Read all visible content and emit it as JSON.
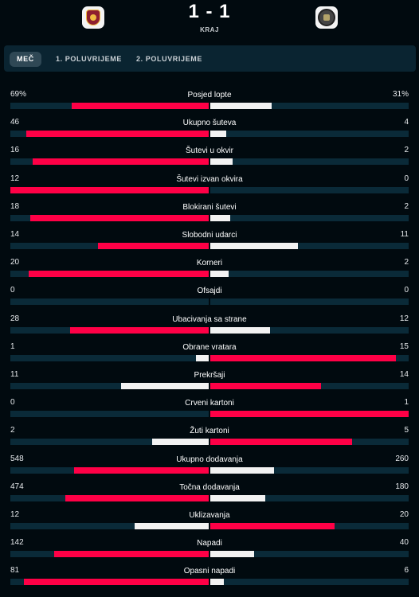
{
  "match": {
    "score": "1 - 1",
    "status": "KRAJ",
    "home_logo": "as-roma-crest",
    "away_logo": "away-team-crest"
  },
  "tabs": [
    "MEČ",
    "1. POLUVRIJEME",
    "2. POLUVRIJEME"
  ],
  "colors": {
    "home": "#ff0046",
    "away": "#f2f2f2",
    "track": "#0a2a38",
    "background": "#010a0f"
  },
  "stats": [
    {
      "label": "Posjed lopte",
      "home": "69%",
      "away": "31%",
      "h": 69,
      "a": 31
    },
    {
      "label": "Ukupno šuteva",
      "home": "46",
      "away": "4",
      "h": 46,
      "a": 4
    },
    {
      "label": "Šutevi u okvir",
      "home": "16",
      "away": "2",
      "h": 16,
      "a": 2
    },
    {
      "label": "Šutevi izvan okvira",
      "home": "12",
      "away": "0",
      "h": 12,
      "a": 0
    },
    {
      "label": "Blokirani šutevi",
      "home": "18",
      "away": "2",
      "h": 18,
      "a": 2
    },
    {
      "label": "Slobodni udarci",
      "home": "14",
      "away": "11",
      "h": 14,
      "a": 11
    },
    {
      "label": "Korneri",
      "home": "20",
      "away": "2",
      "h": 20,
      "a": 2
    },
    {
      "label": "Ofsajdi",
      "home": "0",
      "away": "0",
      "h": 0,
      "a": 0
    },
    {
      "label": "Ubacivanja sa strane",
      "home": "28",
      "away": "12",
      "h": 28,
      "a": 12
    },
    {
      "label": "Obrane vratara",
      "home": "1",
      "away": "15",
      "h": 1,
      "a": 15
    },
    {
      "label": "Prekršaji",
      "home": "11",
      "away": "14",
      "h": 11,
      "a": 14
    },
    {
      "label": "Crveni kartoni",
      "home": "0",
      "away": "1",
      "h": 0,
      "a": 1
    },
    {
      "label": "Žuti kartoni",
      "home": "2",
      "away": "5",
      "h": 2,
      "a": 5
    },
    {
      "label": "Ukupno dodavanja",
      "home": "548",
      "away": "260",
      "h": 548,
      "a": 260
    },
    {
      "label": "Točna dodavanja",
      "home": "474",
      "away": "180",
      "h": 474,
      "a": 180
    },
    {
      "label": "Uklizavanja",
      "home": "12",
      "away": "20",
      "h": 12,
      "a": 20
    },
    {
      "label": "Napadi",
      "home": "142",
      "away": "40",
      "h": 142,
      "a": 40
    },
    {
      "label": "Opasni napadi",
      "home": "81",
      "away": "6",
      "h": 81,
      "a": 6
    }
  ]
}
